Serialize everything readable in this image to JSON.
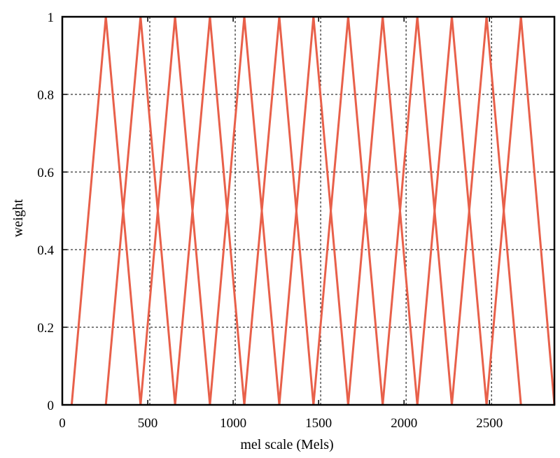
{
  "chart_data": {
    "type": "line",
    "title": "",
    "xlabel": "mel scale (Mels)",
    "ylabel": "weight",
    "xlim": [
      0,
      2880
    ],
    "ylim": [
      0,
      1
    ],
    "x_ticks": [
      0,
      500,
      1000,
      1500,
      2000,
      2500
    ],
    "y_ticks": [
      0,
      0.2,
      0.4,
      0.6,
      0.8,
      1
    ],
    "y_tick_labels": [
      "0",
      "0.2",
      "0.4",
      "0.6",
      "0.8",
      "1"
    ],
    "grid": true,
    "line_color": "#E8604A",
    "filter_peaks": [
      255,
      458,
      660,
      864,
      1065,
      1270,
      1470,
      1673,
      1875,
      2078,
      2280,
      2483,
      2684
    ],
    "filter_edges_left": [
      55,
      255,
      458,
      660,
      864,
      1065,
      1270,
      1470,
      1673,
      1875,
      2078,
      2280,
      2483
    ],
    "filter_edges_right": [
      458,
      660,
      864,
      1065,
      1270,
      1470,
      1673,
      1875,
      2078,
      2280,
      2483,
      2684,
      2880
    ],
    "v_grid_lines": [
      0,
      512,
      1012,
      1512,
      2012,
      2512
    ]
  }
}
